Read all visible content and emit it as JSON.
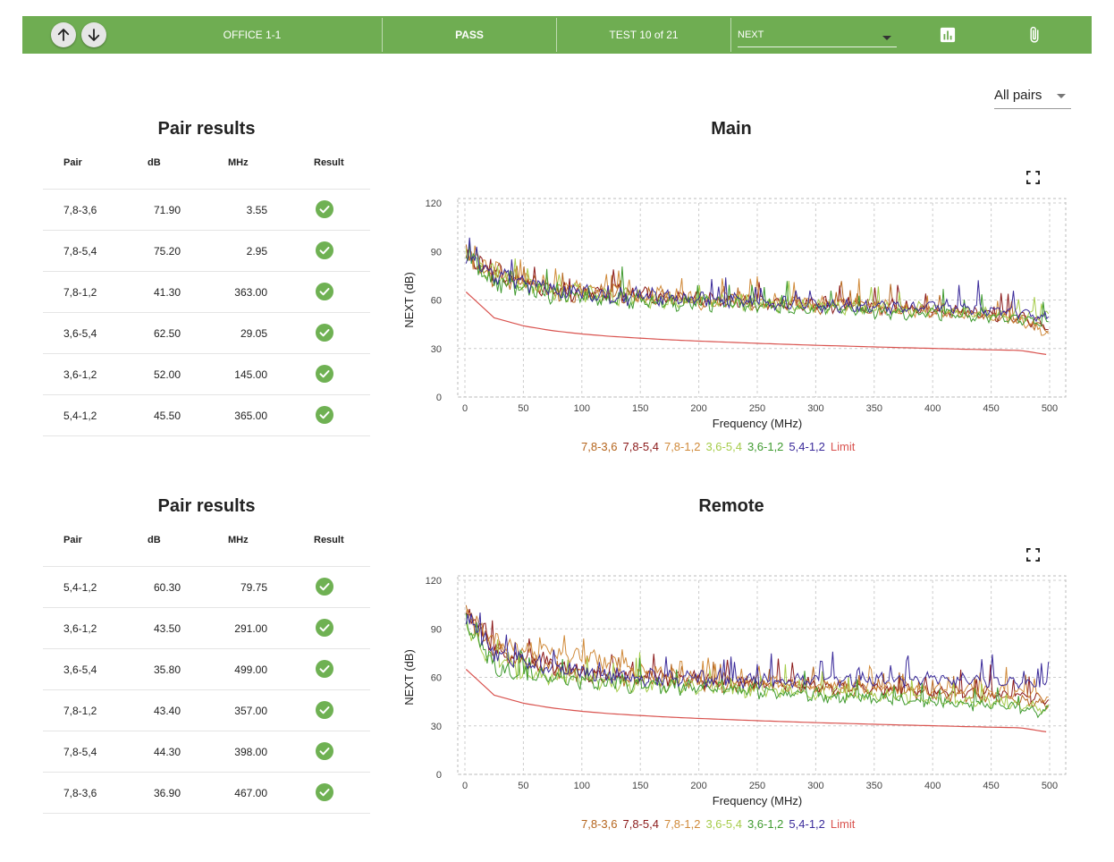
{
  "header": {
    "location": "OFFICE 1-1",
    "status": "PASS",
    "test_counter": "TEST 10 of 21",
    "measurement_select": "NEXT",
    "icons": [
      "arrow-up-icon",
      "arrow-down-icon",
      "chart-icon",
      "paperclip-icon"
    ]
  },
  "filter": {
    "pairs_select": "All pairs"
  },
  "colors": {
    "header_bg": "#6fad52",
    "pass_check": "#6fb153",
    "series": [
      "#b5651d",
      "#8b1a1a",
      "#d08a3a",
      "#a6cc4a",
      "#3f9a2f",
      "#3a2a9a"
    ],
    "limit": "#d9534f"
  },
  "tables": [
    {
      "title": "Pair results",
      "columns": [
        "Pair",
        "dB",
        "MHz",
        "Result"
      ],
      "rows": [
        {
          "pair": "7,8-3,6",
          "db": "71.90",
          "mhz": "3.55",
          "result": "pass"
        },
        {
          "pair": "7,8-5,4",
          "db": "75.20",
          "mhz": "2.95",
          "result": "pass"
        },
        {
          "pair": "7,8-1,2",
          "db": "41.30",
          "mhz": "363.00",
          "result": "pass"
        },
        {
          "pair": "3,6-5,4",
          "db": "62.50",
          "mhz": "29.05",
          "result": "pass"
        },
        {
          "pair": "3,6-1,2",
          "db": "52.00",
          "mhz": "145.00",
          "result": "pass"
        },
        {
          "pair": "5,4-1,2",
          "db": "45.50",
          "mhz": "365.00",
          "result": "pass"
        }
      ]
    },
    {
      "title": "Pair results",
      "columns": [
        "Pair",
        "dB",
        "MHz",
        "Result"
      ],
      "rows": [
        {
          "pair": "5,4-1,2",
          "db": "60.30",
          "mhz": "79.75",
          "result": "pass"
        },
        {
          "pair": "3,6-1,2",
          "db": "43.50",
          "mhz": "291.00",
          "result": "pass"
        },
        {
          "pair": "3,6-5,4",
          "db": "35.80",
          "mhz": "499.00",
          "result": "pass"
        },
        {
          "pair": "7,8-1,2",
          "db": "43.40",
          "mhz": "357.00",
          "result": "pass"
        },
        {
          "pair": "7,8-5,4",
          "db": "44.30",
          "mhz": "398.00",
          "result": "pass"
        },
        {
          "pair": "7,8-3,6",
          "db": "36.90",
          "mhz": "467.00",
          "result": "pass"
        }
      ]
    }
  ],
  "chart_data": [
    {
      "type": "line",
      "title": "Main",
      "xlabel": "Frequency (MHz)",
      "ylabel": "NEXT (dB)",
      "xlim": [
        0,
        500
      ],
      "ylim": [
        0,
        120
      ],
      "xticks": [
        0,
        50,
        100,
        150,
        200,
        250,
        300,
        350,
        400,
        450,
        500
      ],
      "yticks": [
        0,
        30,
        60,
        90,
        120
      ],
      "grid": true,
      "legend_position": "bottom",
      "x": [
        1,
        25,
        50,
        75,
        100,
        125,
        150,
        175,
        200,
        225,
        250,
        275,
        300,
        325,
        350,
        375,
        400,
        425,
        450,
        475,
        500
      ],
      "series": [
        {
          "name": "7,8-3,6",
          "values": [
            88,
            72,
            68,
            65,
            62,
            63,
            60,
            61,
            59,
            58,
            57,
            58,
            55,
            56,
            54,
            55,
            53,
            52,
            50,
            48,
            40
          ]
        },
        {
          "name": "7,8-5,4",
          "values": [
            86,
            76,
            70,
            66,
            63,
            64,
            62,
            60,
            60,
            59,
            57,
            56,
            57,
            55,
            54,
            55,
            52,
            53,
            50,
            49,
            42
          ]
        },
        {
          "name": "7,8-1,2",
          "values": [
            85,
            78,
            72,
            68,
            64,
            65,
            61,
            62,
            58,
            60,
            59,
            57,
            56,
            57,
            55,
            53,
            52,
            51,
            49,
            47,
            38
          ]
        },
        {
          "name": "3,6-5,4",
          "values": [
            90,
            74,
            69,
            64,
            63,
            61,
            60,
            59,
            58,
            57,
            56,
            55,
            56,
            54,
            55,
            53,
            54,
            52,
            51,
            50,
            50
          ]
        },
        {
          "name": "3,6-1,2",
          "values": [
            84,
            70,
            66,
            62,
            60,
            59,
            58,
            57,
            57,
            56,
            55,
            54,
            55,
            53,
            52,
            51,
            51,
            50,
            49,
            48,
            45
          ]
        },
        {
          "name": "5,4-1,2",
          "values": [
            87,
            75,
            70,
            65,
            63,
            62,
            61,
            60,
            59,
            58,
            58,
            57,
            56,
            56,
            55,
            54,
            56,
            55,
            53,
            52,
            48
          ]
        },
        {
          "name": "Limit",
          "values": [
            65,
            49,
            44,
            41,
            39,
            37.5,
            36.4,
            35.4,
            34.6,
            33.9,
            33.2,
            32.6,
            32.0,
            31.5,
            31.0,
            30.5,
            30.1,
            29.6,
            29.2,
            28.8,
            26
          ]
        }
      ]
    },
    {
      "type": "line",
      "title": "Remote",
      "xlabel": "Frequency (MHz)",
      "ylabel": "NEXT (dB)",
      "xlim": [
        0,
        500
      ],
      "ylim": [
        0,
        120
      ],
      "xticks": [
        0,
        50,
        100,
        150,
        200,
        250,
        300,
        350,
        400,
        450,
        500
      ],
      "yticks": [
        0,
        30,
        60,
        90,
        120
      ],
      "grid": true,
      "legend_position": "bottom",
      "x": [
        1,
        25,
        50,
        75,
        100,
        125,
        150,
        175,
        200,
        225,
        250,
        275,
        300,
        325,
        350,
        375,
        400,
        425,
        450,
        475,
        500
      ],
      "series": [
        {
          "name": "7,8-3,6",
          "values": [
            98,
            75,
            68,
            64,
            61,
            60,
            58,
            57,
            56,
            55,
            55,
            54,
            53,
            52,
            51,
            50,
            49,
            48,
            47,
            45,
            43
          ]
        },
        {
          "name": "7,8-5,4",
          "values": [
            100,
            76,
            70,
            66,
            62,
            61,
            59,
            58,
            57,
            56,
            55,
            55,
            54,
            53,
            52,
            51,
            50,
            50,
            49,
            48,
            45
          ]
        },
        {
          "name": "7,8-1,2",
          "values": [
            99,
            80,
            76,
            74,
            72,
            68,
            64,
            60,
            58,
            57,
            56,
            55,
            55,
            54,
            53,
            53,
            52,
            52,
            51,
            50,
            48
          ]
        },
        {
          "name": "3,6-5,4",
          "values": [
            92,
            68,
            62,
            59,
            58,
            56,
            55,
            54,
            53,
            52,
            51,
            50,
            49,
            49,
            48,
            47,
            46,
            45,
            44,
            42,
            40
          ]
        },
        {
          "name": "3,6-1,2",
          "values": [
            90,
            66,
            61,
            58,
            57,
            55,
            54,
            53,
            52,
            51,
            50,
            49,
            48,
            47,
            46,
            45,
            44,
            43,
            42,
            40,
            38
          ]
        },
        {
          "name": "5,4-1,2",
          "values": [
            97,
            74,
            69,
            65,
            62,
            60,
            59,
            58,
            58,
            57,
            57,
            56,
            58,
            57,
            58,
            57,
            59,
            58,
            57,
            56,
            54
          ]
        },
        {
          "name": "Limit",
          "values": [
            65,
            49,
            44,
            41,
            39,
            37.5,
            36.4,
            35.4,
            34.6,
            33.9,
            33.2,
            32.6,
            32.0,
            31.5,
            31.0,
            30.5,
            30.1,
            29.6,
            29.2,
            28.8,
            26
          ]
        }
      ]
    }
  ]
}
